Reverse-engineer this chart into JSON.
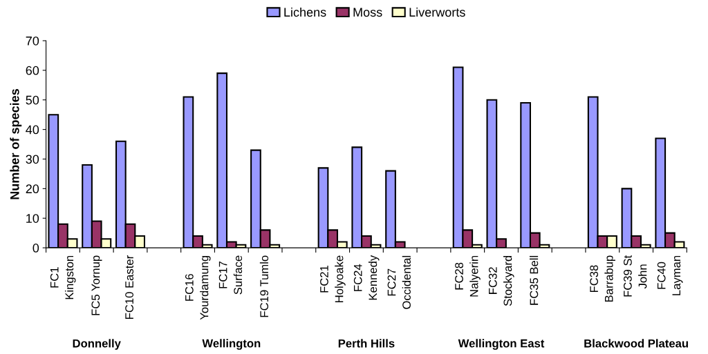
{
  "chart_data": {
    "type": "bar",
    "ylabel": "Number of species",
    "categories": [
      "FC1\nKingston",
      "FC5 Yornup",
      "FC10 Easter",
      null,
      "FC16\nYourdamung",
      "FC17\nSurface",
      "FC19 Tumlo",
      null,
      "FC21\nHolyoake",
      "FC24\nKennedy",
      "FC27\nOccidental",
      null,
      "FC28\nNalyerin",
      "FC32\nStockyard",
      "FC35 Bell",
      null,
      "FC38\nBarrabup",
      "FC39 St\nJohn",
      "FC40\nLayman"
    ],
    "series": [
      {
        "name": "Lichens",
        "color": "#9999ff",
        "values": [
          45,
          28,
          36,
          null,
          51,
          59,
          33,
          null,
          27,
          34,
          26,
          null,
          61,
          50,
          49,
          null,
          51,
          20,
          37
        ]
      },
      {
        "name": "Moss",
        "color": "#993366",
        "values": [
          8,
          9,
          8,
          null,
          4,
          2,
          6,
          null,
          6,
          4,
          2,
          null,
          6,
          3,
          5,
          null,
          4,
          4,
          5
        ]
      },
      {
        "name": "Liverworts",
        "color": "#ffffcc",
        "values": [
          3,
          3,
          4,
          null,
          1,
          1,
          1,
          null,
          2,
          1,
          null,
          null,
          1,
          null,
          1,
          null,
          4,
          1,
          2
        ]
      }
    ],
    "annotations": [
      "Donnelly",
      "Wellington",
      "Perth Hills",
      "Wellington East",
      "Blackwood Plateau"
    ],
    "ylim": [
      0,
      70
    ],
    "yticks": [
      0,
      10,
      20,
      30,
      40,
      50,
      60,
      70
    ],
    "legend": "top",
    "grid": false
  }
}
